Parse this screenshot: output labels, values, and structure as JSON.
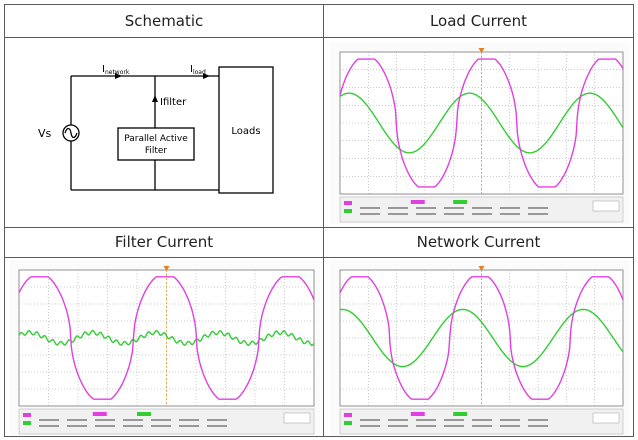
{
  "cells": {
    "schematic": {
      "title": "Schematic"
    },
    "load": {
      "title": "Load Current"
    },
    "filter": {
      "title": "Filter Current"
    },
    "network": {
      "title": "Network Current"
    }
  },
  "schematic": {
    "source_label": "Vs",
    "network_label": "I",
    "network_sub": "network",
    "load_label": "I",
    "load_sub": "load",
    "filter_current_label": "Ifilter",
    "filter_box_line1": "Parallel Active",
    "filter_box_line2": "Filter",
    "loads_label": "Loads"
  },
  "colors": {
    "ch_magenta": "#e040e0",
    "ch_green": "#33cc33",
    "grid": "#9a9a9a"
  }
}
